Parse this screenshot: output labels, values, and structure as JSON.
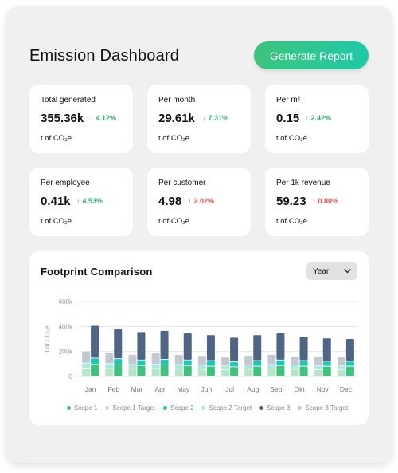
{
  "header": {
    "title": "Emission Dashboard",
    "generate_label": "Generate Report"
  },
  "cards": [
    {
      "label": "Total generated",
      "value": "355.36k",
      "change": "4.12%",
      "direction": "down",
      "unit": "t of CO₂e"
    },
    {
      "label": "Per month",
      "value": "29.61k",
      "change": "7.31%",
      "direction": "down",
      "unit": "t of CO₂e"
    },
    {
      "label": "Per m²",
      "value": "0.15",
      "change": "2.42%",
      "direction": "down",
      "unit": "t of CO₂e"
    },
    {
      "label": "Per employee",
      "value": "0.41k",
      "change": "4.53%",
      "direction": "down",
      "unit": "t of CO₂e"
    },
    {
      "label": "Per customer",
      "value": "4.98",
      "change": "2.02%",
      "direction": "up",
      "unit": "t of CO₂e"
    },
    {
      "label": "Per 1k revenue",
      "value": "59.23",
      "change": "0.80%",
      "direction": "up",
      "unit": "t of CO₂e"
    }
  ],
  "comparison": {
    "title": "Footprint Comparison",
    "period_select": "Year"
  },
  "colors": {
    "scope1": "#3cc47c",
    "scope1_target": "#b7e5c8",
    "scope2": "#1ec9b4",
    "scope2_target": "#a8ece1",
    "scope3": "#4f6585",
    "scope3_target": "#c4c8d2",
    "down": "#3aaf6a",
    "up": "#d9534f"
  },
  "chart_data": {
    "type": "bar",
    "ylabel": "t of CO₂e",
    "ylim": [
      0,
      600000
    ],
    "ytick_labels": [
      "0",
      "200k",
      "400k",
      "600k"
    ],
    "yticks": [
      0,
      200000,
      400000,
      600000
    ],
    "categories": [
      "Jan",
      "Feb",
      "Mar",
      "Apr",
      "May",
      "Jun",
      "Jul",
      "Aug",
      "Sep",
      "Okt",
      "Nov",
      "Dec"
    ],
    "stack_groups": [
      "actual",
      "target"
    ],
    "series": [
      {
        "name": "Scope 1",
        "stack": "actual",
        "values": [
          95000,
          90000,
          85000,
          90000,
          85000,
          80000,
          75000,
          80000,
          85000,
          80000,
          80000,
          80000
        ]
      },
      {
        "name": "Scope 1 Target",
        "stack": "target",
        "values": [
          65000,
          60000,
          58000,
          60000,
          58000,
          55000,
          52000,
          55000,
          58000,
          55000,
          52000,
          52000
        ]
      },
      {
        "name": "Scope 2",
        "stack": "actual",
        "values": [
          50000,
          50000,
          45000,
          45000,
          45000,
          45000,
          40000,
          45000,
          45000,
          45000,
          40000,
          40000
        ]
      },
      {
        "name": "Scope 2 Target",
        "stack": "target",
        "values": [
          40000,
          40000,
          35000,
          35000,
          35000,
          35000,
          30000,
          35000,
          35000,
          35000,
          30000,
          30000
        ]
      },
      {
        "name": "Scope 3",
        "stack": "actual",
        "values": [
          260000,
          240000,
          225000,
          230000,
          215000,
          205000,
          195000,
          205000,
          215000,
          190000,
          185000,
          180000
        ]
      },
      {
        "name": "Scope 3 Target",
        "stack": "target",
        "values": [
          95000,
          90000,
          80000,
          90000,
          80000,
          75000,
          70000,
          75000,
          80000,
          65000,
          75000,
          75000
        ]
      }
    ],
    "legend_position": "bottom",
    "grid": true
  }
}
